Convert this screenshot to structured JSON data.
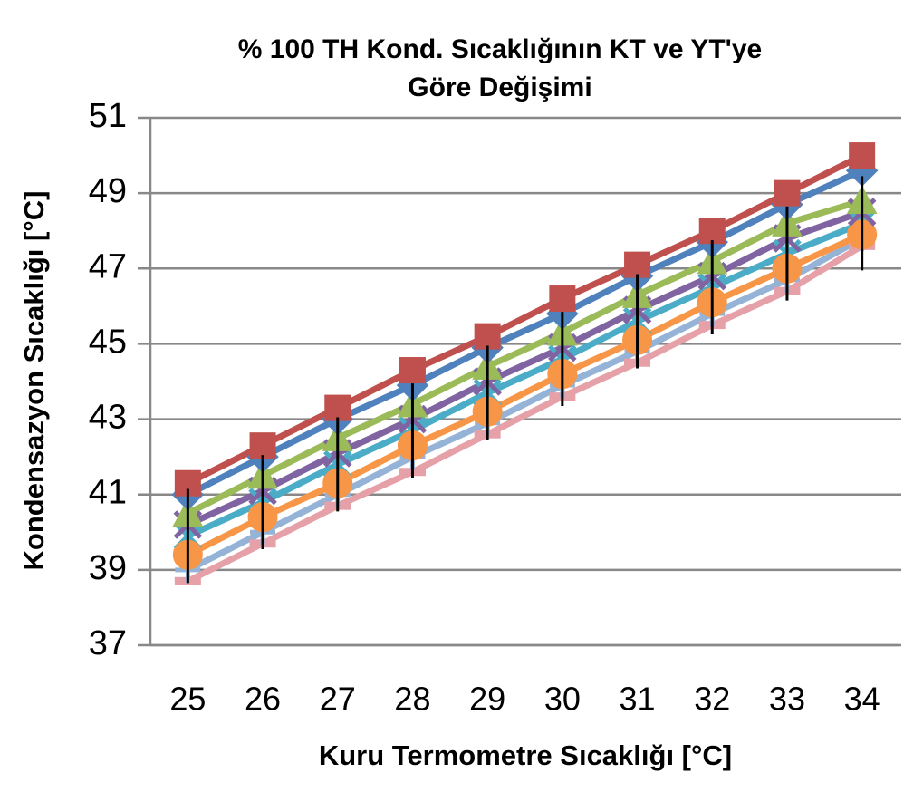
{
  "chart_data": {
    "type": "line",
    "title": [
      "% 100 TH Kond. Sıcaklığının KT ve YT'ye",
      "Göre Değişimi"
    ],
    "x_label": "Kuru Termometre Sıcaklığı [°C]",
    "y_label": "Kondensazyon Sıcaklığı [°C]",
    "categories": [
      "25",
      "26",
      "27",
      "28",
      "29",
      "30",
      "31",
      "32",
      "33",
      "34"
    ],
    "ylim": [
      37,
      51
    ],
    "yticks": [
      37,
      39,
      41,
      43,
      45,
      47,
      49,
      51
    ],
    "grid": true,
    "series": [
      {
        "color": "#4aacc6",
        "marker": "star",
        "values": [
          39.9,
          40.8,
          41.8,
          42.7,
          43.7,
          44.6,
          45.6,
          46.5,
          47.4,
          48.2
        ],
        "errors": [
          1.25,
          1.25,
          1.25,
          1.25,
          1.25,
          1.25,
          1.25,
          1.25,
          1.25,
          1.25
        ]
      },
      {
        "color": "#e5a0a8",
        "marker": "dash",
        "values": [
          38.7,
          39.7,
          40.7,
          41.6,
          42.6,
          43.6,
          44.5,
          45.5,
          46.4,
          47.6
        ]
      },
      {
        "color": "#95b3d7",
        "marker": "plus",
        "values": [
          39.0,
          40.0,
          41.0,
          42.0,
          42.9,
          43.9,
          44.8,
          45.8,
          46.7,
          47.8
        ]
      },
      {
        "color": "#f79646",
        "marker": "circle",
        "values": [
          39.4,
          40.4,
          41.3,
          42.3,
          43.2,
          44.2,
          45.1,
          46.1,
          47.0,
          47.9
        ]
      },
      {
        "color": "#8064a2",
        "marker": "x",
        "values": [
          40.2,
          41.1,
          42.1,
          43.0,
          44.0,
          44.9,
          45.9,
          46.8,
          47.8,
          48.5
        ]
      },
      {
        "color": "#9bbb59",
        "marker": "triangle",
        "values": [
          40.5,
          41.5,
          42.5,
          43.4,
          44.4,
          45.3,
          46.3,
          47.2,
          48.2,
          48.8
        ]
      },
      {
        "color": "#4f81bd",
        "marker": "diamond",
        "values": [
          41.0,
          42.0,
          43.0,
          43.9,
          44.9,
          45.8,
          46.8,
          47.7,
          48.7,
          49.6
        ]
      },
      {
        "color": "#c0504d",
        "marker": "square",
        "values": [
          41.3,
          42.3,
          43.3,
          44.3,
          45.2,
          46.2,
          47.1,
          48.0,
          49.0,
          50.0
        ]
      }
    ]
  }
}
